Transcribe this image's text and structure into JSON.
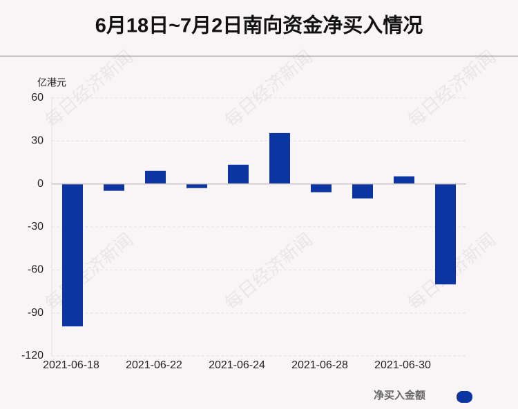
{
  "chart_data": {
    "type": "bar",
    "title": "6月18日~7月2日南向资金净买入情况",
    "y_label": "亿港元",
    "watermark": "每日经济新闻",
    "categories": [
      "2021-06-18",
      null,
      "2021-06-22",
      null,
      "2021-06-24",
      null,
      "2021-06-28",
      null,
      "2021-06-30",
      null
    ],
    "series": [
      {
        "name": "净买入金额",
        "color": "#0d35a1",
        "values": [
          -99.4,
          -4.8,
          9.1,
          -2.9,
          13.4,
          35.5,
          -5.8,
          -10.1,
          5.3,
          -70.1
        ]
      }
    ],
    "ylim": [
      -120,
      60
    ],
    "yticks": [
      60,
      30,
      0,
      -30,
      -60,
      -90,
      -120
    ],
    "grid": true,
    "legend": "bottom-right"
  }
}
